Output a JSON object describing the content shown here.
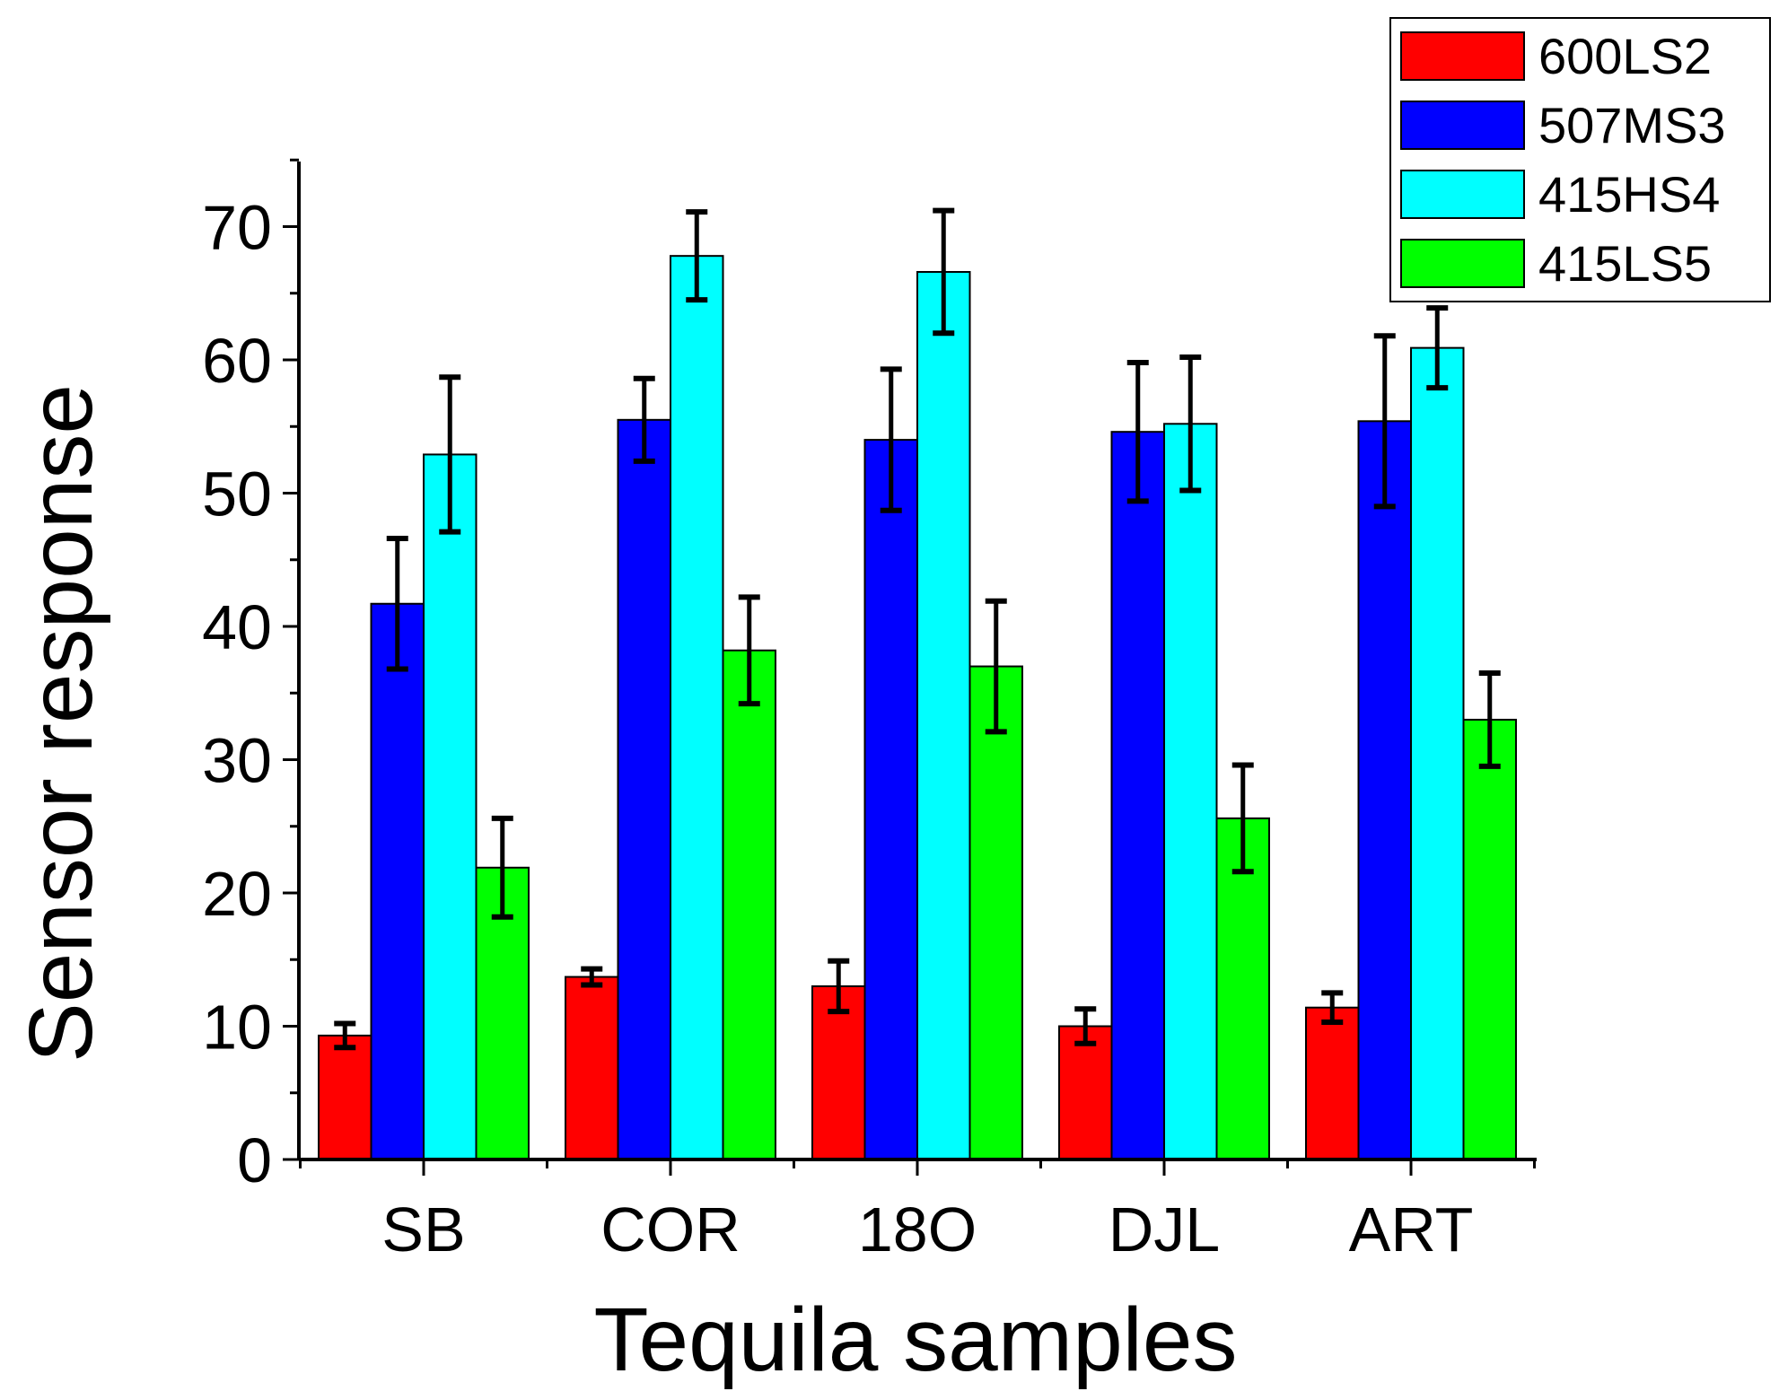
{
  "chart_data": {
    "type": "bar",
    "xlabel": "Tequila samples",
    "ylabel": "Sensor response",
    "ylim": [
      0,
      75
    ],
    "yticks": [
      "0",
      "10",
      "20",
      "30",
      "40",
      "50",
      "60",
      "70"
    ],
    "categories": [
      "SB",
      "COR",
      "18O",
      "DJL",
      "ART"
    ],
    "legend_position": "top-right",
    "series": [
      {
        "name": "600LS2",
        "color": "#ff0000",
        "values": [
          9.3,
          13.7,
          13.0,
          10.0,
          11.4
        ],
        "errors": [
          0.9,
          0.6,
          1.9,
          1.3,
          1.1
        ]
      },
      {
        "name": "507MS3",
        "color": "#0000ff",
        "values": [
          41.7,
          55.5,
          54.0,
          54.6,
          55.4
        ],
        "errors": [
          4.9,
          3.1,
          5.3,
          5.2,
          6.4
        ]
      },
      {
        "name": "415HS4",
        "color": "#00ffff",
        "values": [
          52.9,
          67.8,
          66.6,
          55.2,
          60.9
        ],
        "errors": [
          5.8,
          3.3,
          4.6,
          5.0,
          3.0
        ]
      },
      {
        "name": "415LS5",
        "color": "#00ff00",
        "values": [
          21.9,
          38.2,
          37.0,
          25.6,
          33.0
        ],
        "errors": [
          3.7,
          4.0,
          4.9,
          4.0,
          3.5
        ]
      }
    ]
  }
}
